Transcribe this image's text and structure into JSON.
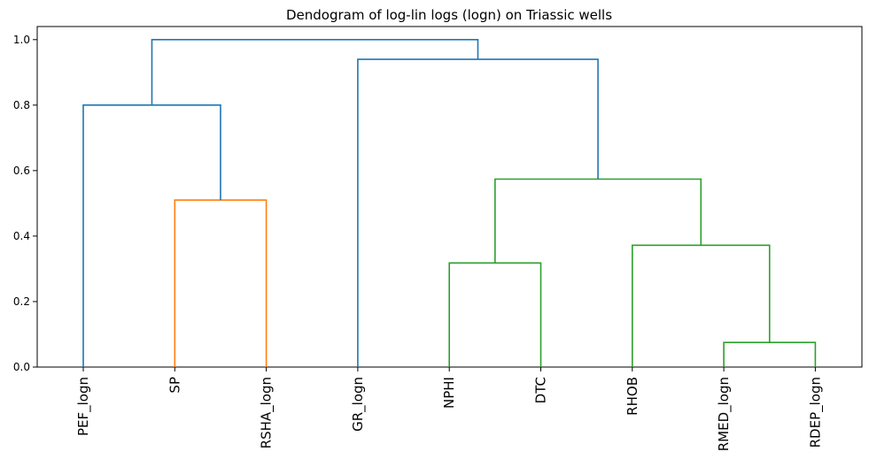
{
  "chart_data": {
    "type": "dendrogram",
    "title": "Dendogram of log-lin logs (logn) on Triassic wells",
    "xlabel": "",
    "ylabel": "",
    "ylim": [
      0,
      1.04
    ],
    "yticks": [
      "0.0",
      "0.2",
      "0.4",
      "0.6",
      "0.8",
      "1.0"
    ],
    "ytick_values": [
      0,
      0.2,
      0.4,
      0.6,
      0.8,
      1.0
    ],
    "grid": false,
    "leaves": [
      "PEF_logn",
      "SP",
      "RSHA_logn",
      "GR_logn",
      "NPHI",
      "DTC",
      "RHOB",
      "RMED_logn",
      "RDEP_logn"
    ],
    "colors": {
      "above_threshold": "#1f77b4",
      "cluster_1": "#ff7f0e",
      "cluster_2": "#2ca02c"
    },
    "links": [
      {
        "left": "SP",
        "right": "RSHA_logn",
        "height": 0.51,
        "color_key": "cluster_1"
      },
      {
        "left": "PEF_logn",
        "right": [
          "SP",
          "RSHA_logn"
        ],
        "height": 0.8,
        "color_key": "above_threshold"
      },
      {
        "left": "RMED_logn",
        "right": "RDEP_logn",
        "height": 0.075,
        "color_key": "cluster_2"
      },
      {
        "left": "NPHI",
        "right": "DTC",
        "height": 0.318,
        "color_key": "cluster_2"
      },
      {
        "left": "RHOB",
        "right": [
          "RMED_logn",
          "RDEP_logn"
        ],
        "height": 0.372,
        "color_key": "cluster_2"
      },
      {
        "left": [
          "NPHI",
          "DTC"
        ],
        "right": [
          "RHOB",
          "RMED_logn",
          "RDEP_logn"
        ],
        "height": 0.574,
        "color_key": "cluster_2"
      },
      {
        "left": "GR_logn",
        "right": [
          "NPHI",
          "DTC",
          "RHOB",
          "RMED_logn",
          "RDEP_logn"
        ],
        "height": 0.94,
        "color_key": "above_threshold"
      },
      {
        "left": [
          "PEF_logn",
          "SP",
          "RSHA_logn"
        ],
        "right": [
          "GR_logn",
          "NPHI",
          "DTC",
          "RHOB",
          "RMED_logn",
          "RDEP_logn"
        ],
        "height": 1.0,
        "color_key": "above_threshold"
      }
    ]
  }
}
